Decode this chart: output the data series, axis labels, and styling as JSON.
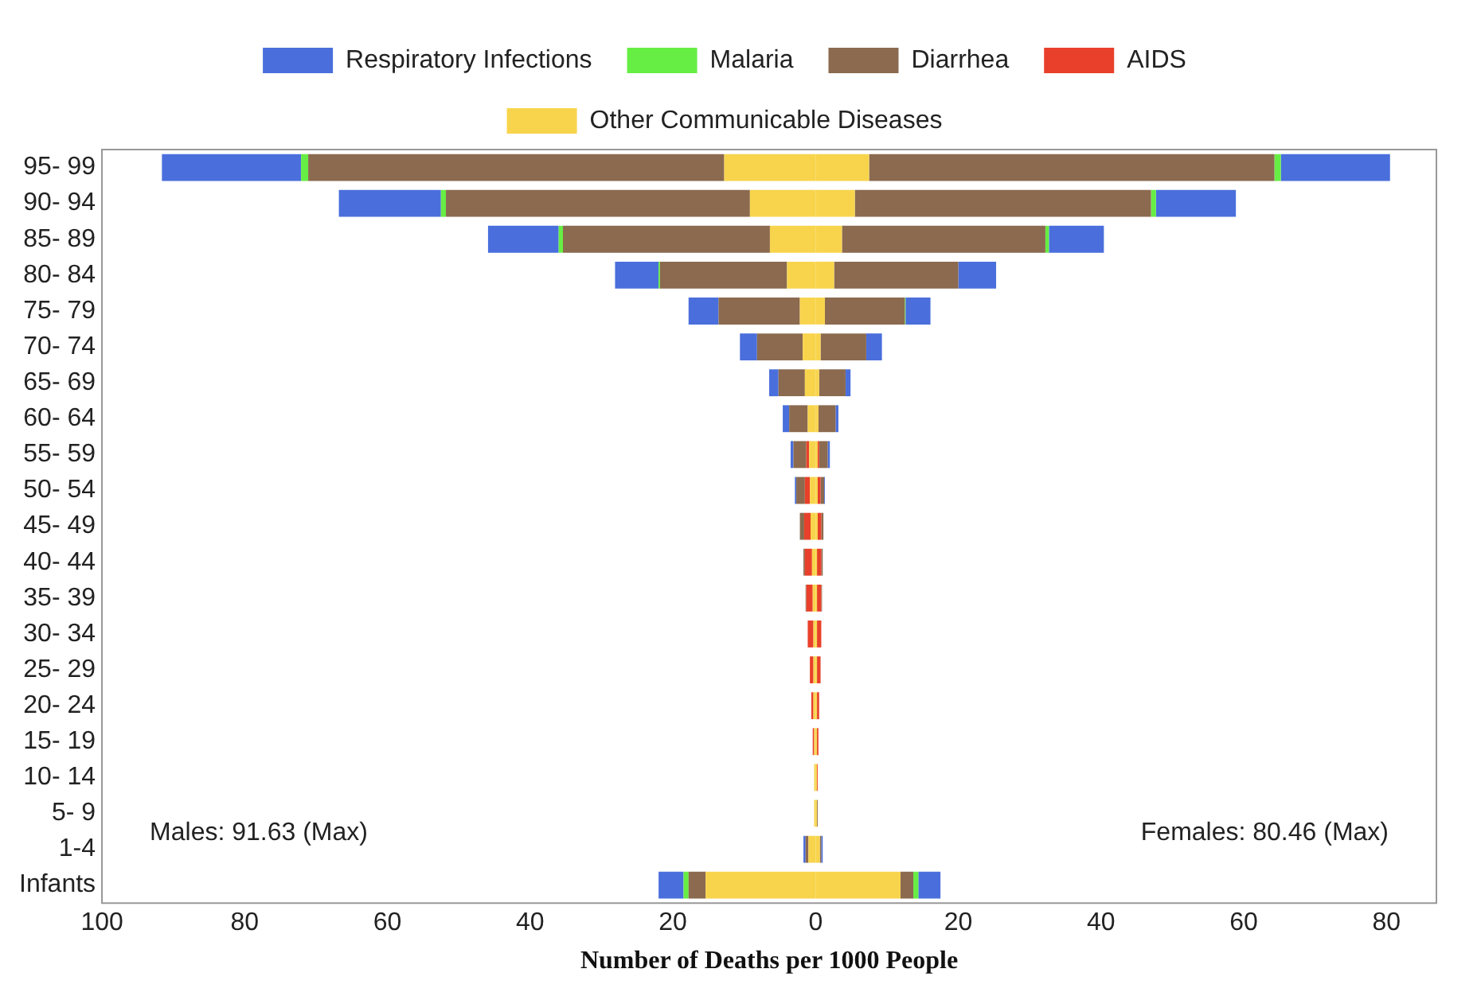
{
  "chart_data": {
    "type": "bar",
    "orientation": "horizontal",
    "stacked": true,
    "xlabel": "Number of Deaths per 1000 People",
    "legend": "top",
    "grid": false,
    "categories": [
      "95- 99",
      "90- 94",
      "85- 89",
      "80- 84",
      "75- 79",
      "70- 74",
      "65- 69",
      "60- 64",
      "55- 59",
      "50- 54",
      "45- 49",
      "40- 44",
      "35- 39",
      "30- 34",
      "25- 29",
      "20- 24",
      "15- 19",
      "10- 14",
      "5- 9",
      "1-4",
      "Infants"
    ],
    "xlim": [
      -100,
      87
    ],
    "xticks": [
      {
        "value": -100,
        "label": "100"
      },
      {
        "value": -80,
        "label": "80"
      },
      {
        "value": -60,
        "label": "60"
      },
      {
        "value": -40,
        "label": "40"
      },
      {
        "value": -20,
        "label": "20"
      },
      0,
      20,
      40,
      60,
      80
    ],
    "annotations": [
      "Males: 91.63 (Max)",
      "Females: 80.46 (Max)"
    ],
    "series": [
      {
        "name": "Other Communicable Diseases",
        "color": "#f8d44c",
        "values": [
          -12.8,
          -9.2,
          -6.4,
          -4.0,
          -2.2,
          -1.8,
          -1.5,
          -1.1,
          -0.9,
          -0.8,
          -0.7,
          -0.5,
          -0.4,
          -0.3,
          -0.3,
          -0.3,
          -0.2,
          -0.2,
          -0.2,
          -1.0,
          -15.4
        ]
      },
      {
        "color": "#f8d44c",
        "values": [
          7.5,
          5.5,
          3.7,
          2.6,
          1.3,
          0.7,
          0.5,
          0.4,
          0.3,
          0.3,
          0.3,
          0.2,
          0.2,
          0.2,
          0.2,
          0.2,
          0.2,
          0.2,
          0.2,
          0.6,
          11.9
        ]
      },
      {
        "name": "AIDS",
        "color": "#e8402a",
        "values": [
          0,
          0,
          0,
          0,
          0,
          0,
          0,
          0,
          -0.4,
          -0.7,
          -0.9,
          -1.0,
          -0.9,
          -0.8,
          -0.5,
          -0.3,
          -0.2,
          0,
          0,
          0,
          0
        ]
      },
      {
        "color": "#e8402a",
        "values": [
          0,
          0,
          0,
          0,
          0,
          0,
          0,
          0,
          0.2,
          0.4,
          0.5,
          0.6,
          0.6,
          0.6,
          0.5,
          0.3,
          0.2,
          0.1,
          0,
          0,
          0
        ]
      },
      {
        "name": "Diarrhea",
        "color": "#8b6a4f",
        "values": [
          -58.3,
          -42.6,
          -29.0,
          -17.8,
          -11.4,
          -6.4,
          -3.7,
          -2.6,
          -1.8,
          -1.2,
          -0.6,
          -0.2,
          -0.1,
          0,
          0,
          0,
          0,
          0,
          0,
          -0.4,
          -2.4
        ]
      },
      {
        "color": "#8b6a4f",
        "values": [
          56.8,
          41.5,
          28.5,
          17.4,
          11.2,
          6.4,
          3.7,
          2.4,
          1.2,
          0.5,
          0.3,
          0.2,
          0.1,
          0,
          0,
          0,
          0,
          0,
          0.1,
          0.2,
          1.8
        ]
      },
      {
        "name": "Malaria",
        "color": "#66ee44",
        "values": [
          -1.0,
          -0.7,
          -0.6,
          -0.2,
          0,
          0,
          0,
          0,
          0,
          0,
          0,
          0,
          0,
          0,
          0,
          0,
          0,
          0,
          0,
          0,
          -0.7
        ]
      },
      {
        "color": "#66ee44",
        "values": [
          0.9,
          0.7,
          0.5,
          0,
          0.1,
          0,
          0,
          0,
          0,
          0,
          0,
          0,
          0,
          0,
          0,
          0,
          0,
          0,
          0,
          0,
          0.7
        ]
      },
      {
        "name": "Respiratory Infections",
        "color": "#4a6fdc",
        "values": [
          -19.5,
          -14.3,
          -9.9,
          -6.1,
          -4.2,
          -2.4,
          -1.3,
          -0.9,
          -0.4,
          -0.2,
          0,
          0,
          0,
          0,
          0,
          0,
          0,
          0,
          0,
          -0.3,
          -3.5
        ]
      },
      {
        "color": "#4a6fdc",
        "values": [
          15.3,
          11.2,
          7.7,
          5.3,
          3.5,
          2.2,
          0.7,
          0.4,
          0.3,
          0.1,
          0,
          0,
          0,
          0,
          0,
          0,
          0,
          0,
          0,
          0.2,
          3.1
        ]
      }
    ]
  }
}
